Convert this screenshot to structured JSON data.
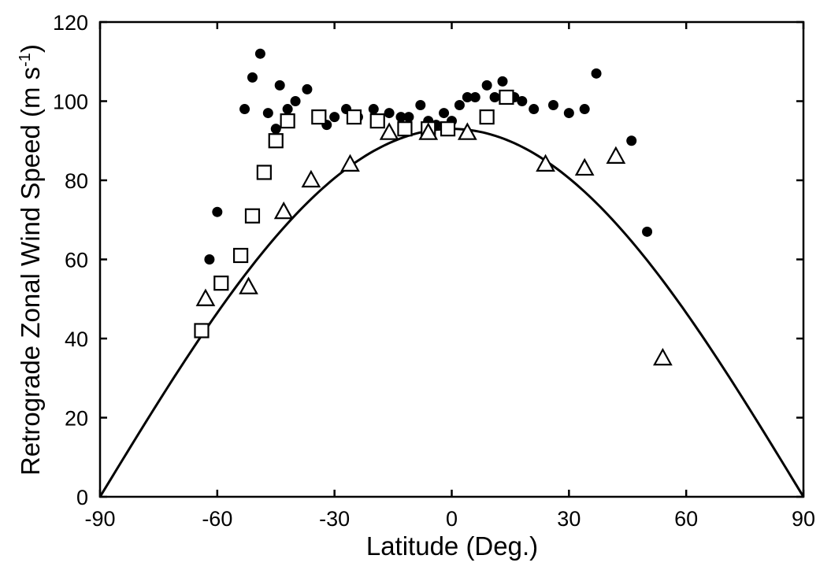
{
  "chart_data": {
    "type": "scatter",
    "title": "",
    "xlabel": "Latitude (Deg.)",
    "ylabel_main": "Retrograde Zonal Wind Speed (m s",
    "ylabel_superscript": "-1",
    "ylabel_close": ")",
    "xlim": [
      -90,
      90
    ],
    "ylim": [
      0,
      120
    ],
    "xticks": [
      -90,
      -60,
      -30,
      0,
      30,
      60,
      90
    ],
    "yticks": [
      0,
      20,
      40,
      60,
      80,
      100,
      120
    ],
    "grid": false,
    "legend": "none",
    "series": [
      {
        "marker": "filled-circle",
        "color": "#000000",
        "points": [
          [
            -62,
            60
          ],
          [
            -60,
            72
          ],
          [
            -53,
            98
          ],
          [
            -51,
            106
          ],
          [
            -49,
            112
          ],
          [
            -47,
            97
          ],
          [
            -44,
            104
          ],
          [
            -45,
            93
          ],
          [
            -42,
            98
          ],
          [
            -40,
            100
          ],
          [
            -37,
            103
          ],
          [
            -32,
            94
          ],
          [
            -30,
            96
          ],
          [
            -27,
            98
          ],
          [
            -24,
            96
          ],
          [
            -20,
            98
          ],
          [
            -16,
            97
          ],
          [
            -13,
            96
          ],
          [
            -11,
            96
          ],
          [
            -8,
            99
          ],
          [
            -6,
            95
          ],
          [
            -4,
            94
          ],
          [
            -2,
            97
          ],
          [
            0,
            95
          ],
          [
            2,
            99
          ],
          [
            4,
            101
          ],
          [
            6,
            101
          ],
          [
            9,
            104
          ],
          [
            11,
            101
          ],
          [
            13,
            105
          ],
          [
            16,
            101
          ],
          [
            18,
            100
          ],
          [
            21,
            98
          ],
          [
            26,
            99
          ],
          [
            30,
            97
          ],
          [
            34,
            98
          ],
          [
            37,
            107
          ],
          [
            46,
            90
          ],
          [
            50,
            67
          ]
        ]
      },
      {
        "marker": "open-square",
        "color": "#000000",
        "points": [
          [
            -64,
            42
          ],
          [
            -59,
            54
          ],
          [
            -54,
            61
          ],
          [
            -51,
            71
          ],
          [
            -48,
            82
          ],
          [
            -45,
            90
          ],
          [
            -42,
            95
          ],
          [
            -34,
            96
          ],
          [
            -25,
            96
          ],
          [
            -19,
            95
          ],
          [
            -12,
            93
          ],
          [
            -6,
            93
          ],
          [
            -1,
            93
          ],
          [
            9,
            96
          ],
          [
            14,
            101
          ]
        ]
      },
      {
        "marker": "open-triangle",
        "color": "#000000",
        "points": [
          [
            -63,
            50
          ],
          [
            -52,
            53
          ],
          [
            -43,
            72
          ],
          [
            -36,
            80
          ],
          [
            -26,
            84
          ],
          [
            -16,
            92
          ],
          [
            -6,
            92
          ],
          [
            4,
            92
          ],
          [
            24,
            84
          ],
          [
            34,
            83
          ],
          [
            42,
            86
          ],
          [
            54,
            35
          ]
        ]
      },
      {
        "type": "line",
        "color": "#000000",
        "amplitude": 93,
        "form": "amplitude * cos(latitude)"
      }
    ]
  }
}
